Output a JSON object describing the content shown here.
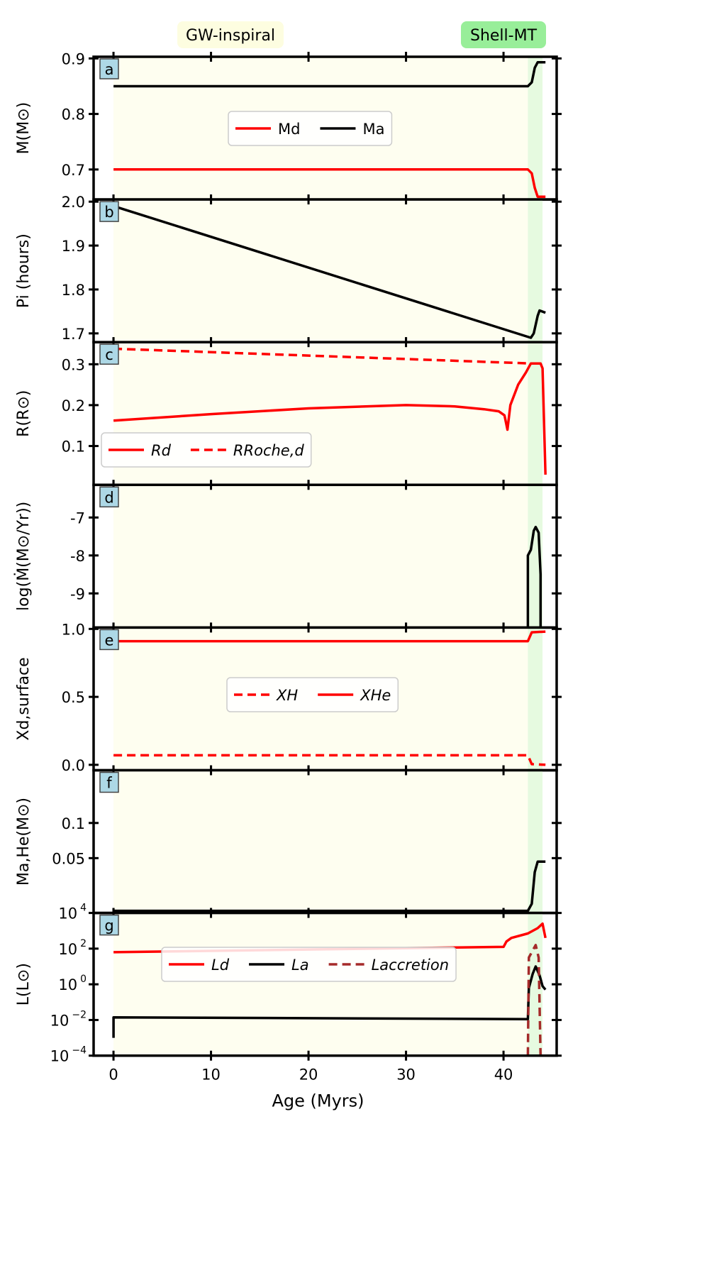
{
  "phases": [
    {
      "label": "GW-inspiral",
      "range": [
        0,
        42.5
      ],
      "color": "#fefef0",
      "label_bg": "#fdfde0"
    },
    {
      "label": "Shell-MT",
      "range": [
        42.5,
        44.0
      ],
      "color": "#e6fae0",
      "label_bg": "#98ee99"
    }
  ],
  "chart_data": [
    {
      "type": "line",
      "panel": "a",
      "ylabel": "M(M⊙)",
      "ylim": [
        0.646,
        0.903
      ],
      "yticks": [
        0.7,
        0.8,
        0.9
      ],
      "yticklabels": [
        "0.7",
        "0.8",
        "0.9"
      ],
      "legend": {
        "placement": "center",
        "entries": [
          "Md",
          "Ma"
        ]
      },
      "series": [
        {
          "name": "Md",
          "color": "#ff0000",
          "dash": false,
          "x": [
            0,
            42.5,
            42.9,
            43.2,
            43.5,
            44.3
          ],
          "y": [
            0.7,
            0.7,
            0.693,
            0.667,
            0.651,
            0.651
          ]
        },
        {
          "name": "Ma",
          "color": "#000000",
          "dash": false,
          "x": [
            0,
            42.5,
            42.9,
            43.2,
            43.5,
            44.3
          ],
          "y": [
            0.85,
            0.85,
            0.857,
            0.883,
            0.893,
            0.893
          ]
        }
      ]
    },
    {
      "type": "line",
      "panel": "b",
      "ylabel": "Pi (hours)",
      "ylim": [
        1.68,
        2.005
      ],
      "yticks": [
        1.7,
        1.8,
        1.9,
        2.0
      ],
      "yticklabels": [
        "1.7",
        "1.8",
        "1.9",
        "2.0"
      ],
      "series": [
        {
          "name": "P",
          "color": "#000000",
          "dash": false,
          "x": [
            0,
            42.8,
            43.1,
            43.5,
            43.7,
            44.3
          ],
          "y": [
            1.99,
            1.69,
            1.7,
            1.74,
            1.752,
            1.747
          ]
        }
      ]
    },
    {
      "type": "line",
      "panel": "c",
      "ylabel": "R(R⊙)",
      "ylim": [
        0.005,
        0.354
      ],
      "yticks": [
        0.1,
        0.2,
        0.3
      ],
      "yticklabels": [
        "0.1",
        "0.2",
        "0.3"
      ],
      "legend": {
        "placement": "lower-left",
        "entries": [
          "Rd",
          "RRoche,d"
        ]
      },
      "series": [
        {
          "name": "Rd",
          "color": "#ff0000",
          "dash": false,
          "x": [
            0,
            10,
            20,
            30,
            35,
            38,
            39.5,
            40.1,
            40.4,
            40.7,
            41.5,
            42.3,
            42.8,
            43.8,
            44.0,
            44.3
          ],
          "y": [
            0.162,
            0.178,
            0.192,
            0.2,
            0.197,
            0.19,
            0.185,
            0.175,
            0.14,
            0.2,
            0.25,
            0.28,
            0.302,
            0.302,
            0.29,
            0.03
          ]
        },
        {
          "name": "RRoche,d",
          "color": "#ff0000",
          "dash": true,
          "x": [
            0,
            42.8,
            43.8
          ],
          "y": [
            0.338,
            0.302,
            0.302
          ]
        }
      ]
    },
    {
      "type": "line",
      "panel": "d",
      "ylabel": "log(Ṁ(M⊙/Yr))",
      "ylim": [
        -9.9,
        -6.14
      ],
      "yticks": [
        -9,
        -8,
        -7
      ],
      "yticklabels": [
        "-9",
        "-8",
        "-7"
      ],
      "series": [
        {
          "name": "Mdot",
          "color": "#000000",
          "dash": false,
          "x": [
            42.5,
            42.5,
            42.8,
            43.1,
            43.3,
            43.6,
            43.8,
            43.8
          ],
          "y": [
            -9.9,
            -8.0,
            -7.85,
            -7.35,
            -7.25,
            -7.4,
            -8.5,
            -9.9
          ]
        }
      ]
    },
    {
      "type": "line",
      "panel": "e",
      "ylabel": "Xd,surface",
      "ylim": [
        -0.04,
        1.01
      ],
      "yticks": [
        0,
        0.5,
        1.0
      ],
      "yticklabels": [
        "0.0",
        "0.5",
        "1.0"
      ],
      "legend": {
        "placement": "center",
        "entries": [
          "XH",
          "XHe"
        ]
      },
      "series": [
        {
          "name": "XH",
          "color": "#ff0000",
          "dash": true,
          "x": [
            0,
            42.5,
            42.9,
            44.3
          ],
          "y": [
            0.07,
            0.07,
            0.005,
            0.0
          ]
        },
        {
          "name": "XHe",
          "color": "#ff0000",
          "dash": false,
          "x": [
            0,
            42.5,
            42.9,
            44.3
          ],
          "y": [
            0.91,
            0.91,
            0.975,
            0.98
          ]
        }
      ]
    },
    {
      "type": "line",
      "panel": "f",
      "ylabel": "Ma,He(M⊙)",
      "ylim": [
        -0.028,
        0.175
      ],
      "yticks": [
        0.05,
        0.1
      ],
      "yticklabels": [
        "0.05",
        "0.1"
      ],
      "series": [
        {
          "name": "Ma,He",
          "color": "#000000",
          "dash": false,
          "x": [
            0,
            42.5,
            42.9,
            43.2,
            43.5,
            44.3
          ],
          "y": [
            -0.025,
            -0.025,
            -0.015,
            0.03,
            0.045,
            0.045
          ]
        }
      ]
    },
    {
      "type": "line",
      "panel": "g",
      "ylabel": "L(L⊙)",
      "yscale": "log",
      "ylim": [
        -4,
        4
      ],
      "yticks": [
        -4,
        -2,
        0,
        2,
        4
      ],
      "yticklabels": [
        "10",
        "10",
        "10",
        "10",
        "10"
      ],
      "ytickexp": [
        "−4",
        "−2",
        "0",
        "2",
        "4"
      ],
      "legend": {
        "placement": "center",
        "entries": [
          "Ld",
          "La",
          "Laccretion"
        ]
      },
      "series": [
        {
          "name": "Ld",
          "color": "#ff0000",
          "dash": false,
          "x": [
            0,
            20,
            40,
            40.3,
            40.8,
            42.5,
            43.5,
            44.0,
            44.3
          ],
          "y": [
            1.8,
            1.95,
            2.1,
            2.4,
            2.6,
            2.85,
            3.15,
            3.4,
            2.6
          ]
        },
        {
          "name": "La",
          "color": "#000000",
          "dash": false,
          "x": [
            0,
            0,
            42.5,
            42.6,
            43.0,
            43.3,
            43.7,
            44.0,
            44.3
          ],
          "y": [
            -3.0,
            -1.85,
            -1.95,
            -0.2,
            0.6,
            1.0,
            0.5,
            -0.1,
            -0.3
          ]
        },
        {
          "name": "Laccretion",
          "color": "#a52a2a",
          "dash": true,
          "x": [
            42.5,
            42.6,
            42.9,
            43.3,
            43.6,
            43.8
          ],
          "y": [
            -4,
            1.5,
            1.8,
            2.2,
            1.5,
            -4
          ]
        }
      ]
    }
  ],
  "xaxis": {
    "label": "Age (Myrs)",
    "xlim": [
      -2.04,
      45.45
    ],
    "ticks": [
      0,
      10,
      20,
      30,
      40
    ],
    "ticklabels": [
      "0",
      "10",
      "20",
      "30",
      "40"
    ]
  }
}
